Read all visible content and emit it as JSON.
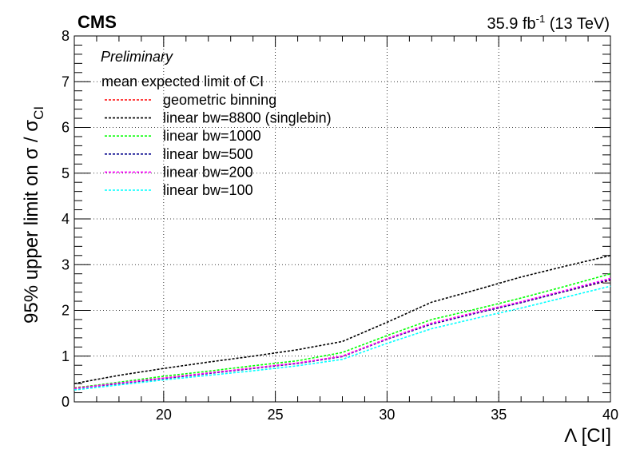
{
  "header": {
    "experiment": "CMS",
    "lumi_value": "35.9 fb",
    "lumi_exp": "-1",
    "energy": "(13 TeV)",
    "status": "Preliminary"
  },
  "chart_data": {
    "type": "line",
    "title": "",
    "xlabel": "Λ [CI]",
    "ylabel_main": "95% upper limit on σ / σ",
    "ylabel_sub": "CI",
    "xlim": [
      16,
      40
    ],
    "ylim": [
      0,
      8
    ],
    "x_ticks": [
      20,
      25,
      30,
      35,
      40
    ],
    "y_ticks": [
      0,
      1,
      2,
      3,
      4,
      5,
      6,
      7,
      8
    ],
    "grid": true,
    "legend_position": "top-left",
    "legend_header": "mean expected limit of CI",
    "x": [
      16,
      18,
      20,
      22,
      24,
      26,
      28,
      30,
      32,
      34,
      36,
      38,
      40
    ],
    "series": [
      {
        "name": "geometric binning",
        "color": "#ff0000",
        "values": [
          0.31,
          0.41,
          0.52,
          0.63,
          0.74,
          0.85,
          1.0,
          1.38,
          1.72,
          1.96,
          2.18,
          2.42,
          2.66
        ]
      },
      {
        "name": "linear bw=8800 (singlebin)",
        "color": "#000000",
        "values": [
          0.4,
          0.58,
          0.73,
          0.87,
          1.0,
          1.14,
          1.32,
          1.74,
          2.18,
          2.45,
          2.73,
          2.97,
          3.2
        ]
      },
      {
        "name": "linear bw=1000",
        "color": "#00ff00",
        "values": [
          0.3,
          0.43,
          0.56,
          0.67,
          0.79,
          0.9,
          1.08,
          1.45,
          1.8,
          2.03,
          2.27,
          2.53,
          2.8
        ]
      },
      {
        "name": "linear bw=500",
        "color": "#00008b",
        "values": [
          0.29,
          0.4,
          0.51,
          0.62,
          0.73,
          0.84,
          0.99,
          1.37,
          1.7,
          1.94,
          2.17,
          2.42,
          2.67
        ]
      },
      {
        "name": "linear bw=200",
        "color": "#ff00ff",
        "values": [
          0.29,
          0.41,
          0.52,
          0.63,
          0.74,
          0.85,
          1.0,
          1.38,
          1.72,
          1.96,
          2.19,
          2.44,
          2.7
        ]
      },
      {
        "name": "linear bw=100",
        "color": "#00ffff",
        "values": [
          0.26,
          0.37,
          0.48,
          0.58,
          0.68,
          0.79,
          0.93,
          1.28,
          1.6,
          1.83,
          2.05,
          2.29,
          2.53
        ]
      }
    ]
  }
}
